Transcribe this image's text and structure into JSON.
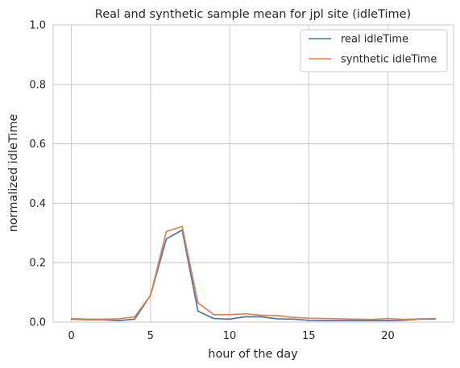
{
  "chart_data": {
    "type": "line",
    "title": "Real and synthetic sample mean for jpl site (idleTime)",
    "xlabel": "hour of the day",
    "ylabel": "normalized idleTime",
    "xlim": [
      -1.15,
      24.15
    ],
    "ylim": [
      0,
      1
    ],
    "xticks": [
      0,
      5,
      10,
      15,
      20
    ],
    "yticks": [
      0.0,
      0.2,
      0.4,
      0.6,
      0.8,
      1.0
    ],
    "ytick_labels": [
      "0.0",
      "0.2",
      "0.4",
      "0.6",
      "0.8",
      "1.0"
    ],
    "grid": true,
    "legend_position": "top-right",
    "x": [
      0,
      1,
      2,
      3,
      4,
      5,
      6,
      7,
      8,
      9,
      10,
      11,
      12,
      13,
      14,
      15,
      16,
      17,
      18,
      19,
      20,
      21,
      22,
      23
    ],
    "series": [
      {
        "name": "real idleTime",
        "color": "#4c72b0",
        "values": [
          0.01,
          0.008,
          0.008,
          0.005,
          0.01,
          0.09,
          0.28,
          0.31,
          0.037,
          0.012,
          0.01,
          0.018,
          0.018,
          0.011,
          0.01,
          0.006,
          0.005,
          0.005,
          0.005,
          0.005,
          0.005,
          0.006,
          0.01,
          0.01
        ]
      },
      {
        "name": "synthetic idleTime",
        "color": "#dd8452",
        "values": [
          0.012,
          0.01,
          0.01,
          0.011,
          0.018,
          0.09,
          0.305,
          0.322,
          0.065,
          0.025,
          0.025,
          0.028,
          0.023,
          0.022,
          0.016,
          0.013,
          0.012,
          0.011,
          0.01,
          0.009,
          0.012,
          0.009,
          0.011,
          0.012
        ]
      }
    ]
  }
}
